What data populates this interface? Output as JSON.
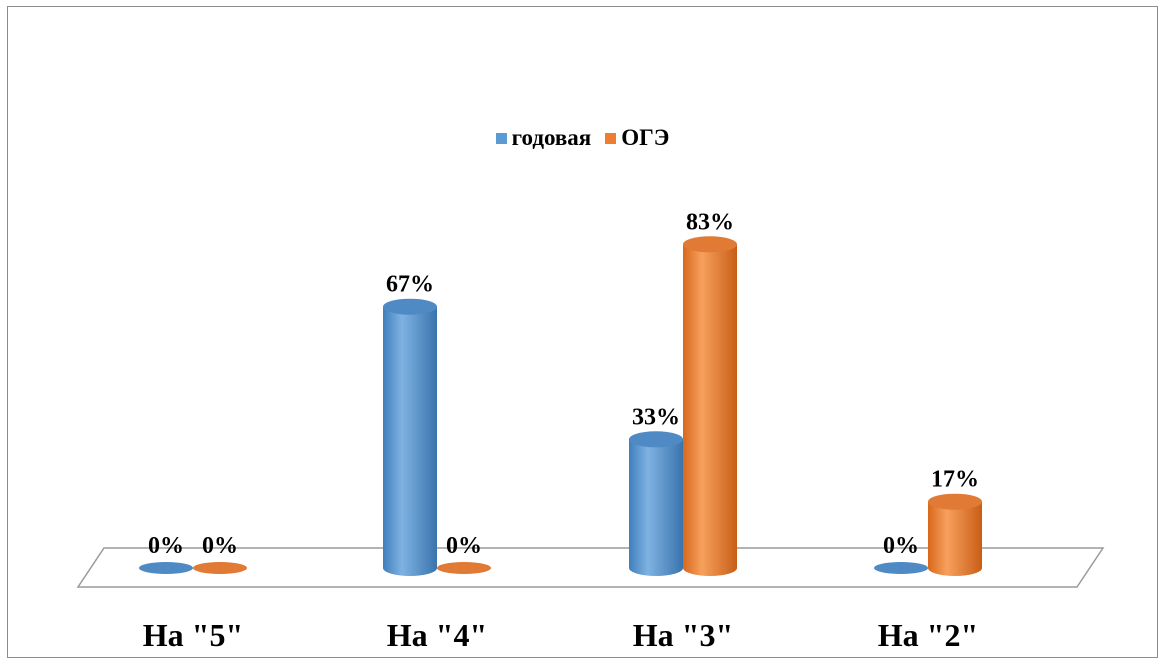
{
  "chart_data": {
    "type": "bar",
    "title": "",
    "xlabel": "",
    "ylabel": "",
    "ylim": [
      0,
      100
    ],
    "categories": [
      "На \"5\"",
      "На \"4\"",
      "На \"3\"",
      "На \"2\""
    ],
    "series": [
      {
        "name": "годовая",
        "color": "#5b9bd5",
        "values": [
          0,
          67,
          33,
          0
        ],
        "labels": [
          "0%",
          "67%",
          "33%",
          "0%"
        ]
      },
      {
        "name": "ОГЭ",
        "color": "#ed7d31",
        "values": [
          0,
          0,
          83,
          17
        ],
        "labels": [
          "0%",
          "0%",
          "83%",
          "17%"
        ]
      }
    ],
    "legend_position": "top",
    "grid": false
  }
}
